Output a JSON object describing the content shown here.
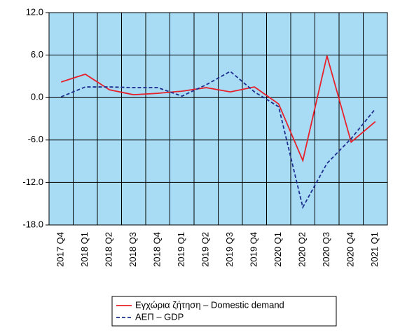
{
  "chart_data": {
    "type": "line",
    "categories": [
      "2017 Q4",
      "2018 Q1",
      "2018 Q2",
      "2018 Q3",
      "2018 Q4",
      "2019 Q1",
      "2019 Q2",
      "2019 Q3",
      "2019 Q4",
      "2020 Q1",
      "2020 Q2",
      "2020 Q3",
      "2020 Q4",
      "2021 Q1"
    ],
    "series": [
      {
        "name": "Εγχώρια ζήτηση – Domestic demand",
        "color": "#e8202a",
        "dash": "solid",
        "values": [
          2.2,
          3.3,
          1.1,
          0.4,
          0.6,
          0.9,
          1.4,
          0.8,
          1.5,
          -0.9,
          -8.9,
          5.9,
          -6.3,
          -3.4
        ]
      },
      {
        "name": "ΑΕΠ – GDP",
        "color": "#1f2f8f",
        "dash": "dashed",
        "values": [
          0.1,
          1.5,
          1.5,
          1.4,
          1.4,
          0.2,
          1.8,
          3.7,
          0.8,
          -1.3,
          -15.5,
          -9.3,
          -5.8,
          -1.6
        ]
      }
    ],
    "ylim": [
      -18,
      12
    ],
    "yticks": [
      {
        "value": -18,
        "label": "-18.0"
      },
      {
        "value": -12,
        "label": "-12.0"
      },
      {
        "value": -6,
        "label": "-6.0"
      },
      {
        "value": 0,
        "label": "0.0"
      },
      {
        "value": 6,
        "label": "6.0"
      },
      {
        "value": 12,
        "label": "12.0"
      }
    ],
    "grid": true,
    "plot_background": "#a8dcf5",
    "legend": "bottom"
  }
}
